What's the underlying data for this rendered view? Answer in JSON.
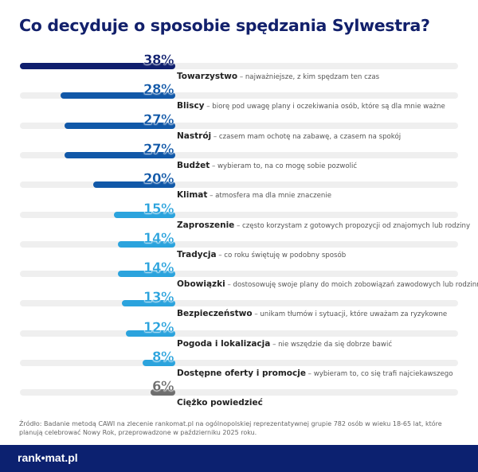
{
  "title": "Co decyduje o sposobie spędzania Sylwestra?",
  "chart_data": {
    "type": "bar",
    "orientation": "horizontal",
    "xlim": [
      0,
      100
    ],
    "categories": [
      {
        "name": "Towarzystwo",
        "desc": "– najważniejsze, z kim spędzam ten czas"
      },
      {
        "name": "Bliscy",
        "desc": "– biorę pod uwagę plany i oczekiwania osób, które są dla mnie ważne"
      },
      {
        "name": "Nastrój",
        "desc": "– czasem mam ochotę na zabawę, a czasem na spokój"
      },
      {
        "name": "Budżet",
        "desc": "– wybieram to, na co mogę sobie pozwolić"
      },
      {
        "name": "Klimat",
        "desc": "– atmosfera ma dla mnie znaczenie"
      },
      {
        "name": "Zaproszenie",
        "desc": "– często korzystam z gotowych propozycji od znajomych lub rodziny"
      },
      {
        "name": "Tradycja",
        "desc": "– co roku świętuję w podobny sposób"
      },
      {
        "name": "Obowiązki",
        "desc": "– dostosowuję swoje plany do moich zobowiązań zawodowych lub rodzinnych"
      },
      {
        "name": "Bezpieczeństwo",
        "desc": "– unikam tłumów i sytuacji, które uważam za ryzykowne"
      },
      {
        "name": "Pogoda i lokalizacja",
        "desc": "– nie wszędzie da się dobrze bawić"
      },
      {
        "name": "Dostępne oferty i promocje",
        "desc": "– wybieram to, co się trafi najciekawszego"
      },
      {
        "name": "Ciężko powiedzieć",
        "desc": ""
      }
    ],
    "values": [
      38,
      28,
      27,
      27,
      20,
      15,
      14,
      14,
      13,
      12,
      8,
      6
    ],
    "labels": [
      "38%",
      "28%",
      "27%",
      "27%",
      "20%",
      "15%",
      "14%",
      "14%",
      "13%",
      "12%",
      "8%",
      "6%"
    ],
    "colors": [
      "#0f1f6e",
      "#1158a8",
      "#1158a8",
      "#1158a8",
      "#1158a8",
      "#2ba3dd",
      "#2ba3dd",
      "#2ba3dd",
      "#2ba3dd",
      "#2ba3dd",
      "#2ba3dd",
      "#6e6e6e"
    ]
  },
  "source": "Źródło: Badanie metodą CAWI na zlecenie rankomat.pl na ogólnopolskiej reprezentatywnej grupie 782 osób w wieku 18-65 lat, które planują celebrować Nowy Rok, przeprowadzone w październiku 2025 roku.",
  "logo": "rank•mat.pl",
  "footer_color": "#0c2170"
}
